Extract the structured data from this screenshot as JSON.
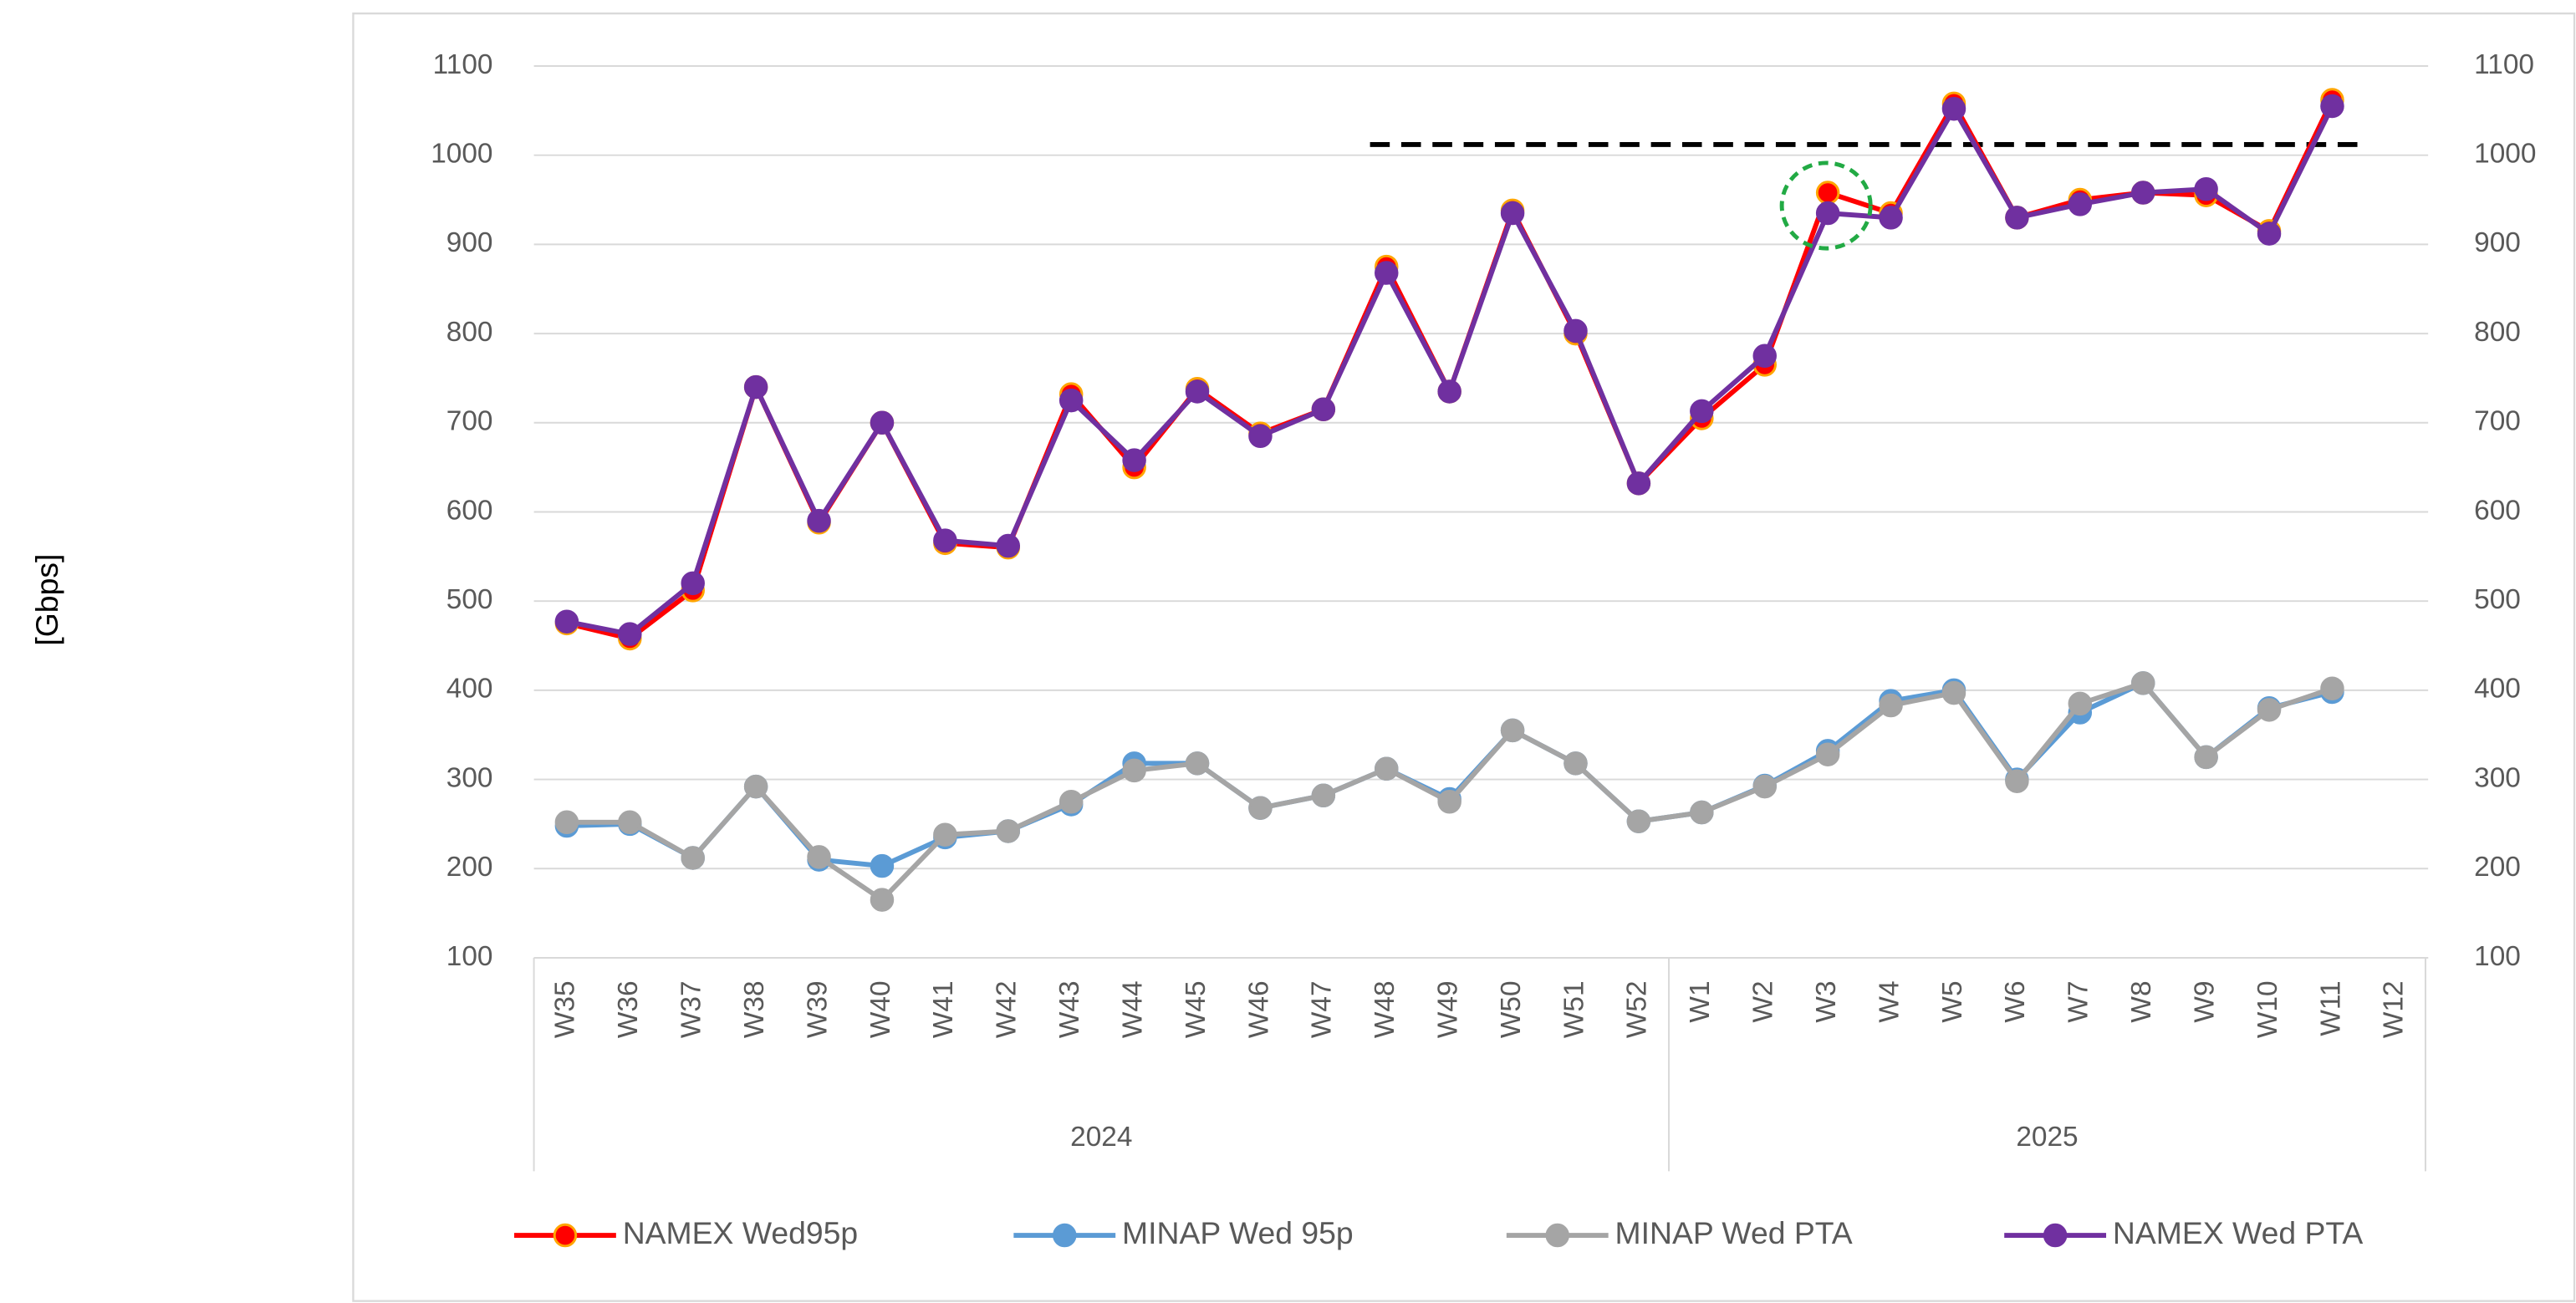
{
  "chart_data": {
    "type": "line",
    "y_axis_label": "[Gbps]",
    "categories": [
      "W35",
      "W36",
      "W37",
      "W38",
      "W39",
      "W40",
      "W41",
      "W42",
      "W43",
      "W44",
      "W45",
      "W46",
      "W47",
      "W48",
      "W49",
      "W50",
      "W51",
      "W52",
      "W1",
      "W2",
      "W3",
      "W4",
      "W5",
      "W6",
      "W7",
      "W8",
      "W9",
      "W10",
      "W11",
      "W12"
    ],
    "groups": [
      {
        "label": "2024",
        "count": 18
      },
      {
        "label": "2025",
        "count": 12
      }
    ],
    "series": [
      {
        "name": "NAMEX Wed95p",
        "color": "#ff0000",
        "marker_edge": "#ffa500",
        "values": [
          475,
          458,
          512,
          740,
          588,
          700,
          565,
          560,
          732,
          650,
          738,
          688,
          715,
          875,
          735,
          938,
          800,
          632,
          705,
          765,
          958,
          935,
          1058,
          930,
          950,
          958,
          955,
          915,
          1062,
          null
        ]
      },
      {
        "name": "MINAP Wed 95p",
        "color": "#5b9bd5",
        "values": [
          248,
          250,
          212,
          292,
          210,
          203,
          235,
          242,
          272,
          318,
          318,
          268,
          282,
          312,
          278,
          355,
          318,
          253,
          263,
          293,
          332,
          388,
          400,
          300,
          375,
          408,
          325,
          380,
          398,
          null
        ]
      },
      {
        "name": "MINAP Wed PTA",
        "color": "#a5a5a5",
        "values": [
          252,
          252,
          212,
          292,
          213,
          165,
          238,
          242,
          275,
          310,
          318,
          268,
          282,
          312,
          275,
          355,
          318,
          253,
          263,
          292,
          328,
          383,
          397,
          298,
          385,
          408,
          325,
          378,
          402,
          null
        ]
      },
      {
        "name": "NAMEX Wed PTA",
        "color": "#7030a0",
        "values": [
          477,
          463,
          520,
          740,
          590,
          700,
          568,
          562,
          725,
          658,
          735,
          685,
          715,
          868,
          735,
          935,
          803,
          632,
          713,
          775,
          935,
          930,
          1052,
          930,
          945,
          958,
          962,
          912,
          1055,
          null
        ]
      }
    ],
    "ylim": [
      100,
      1100
    ],
    "yticks": [
      100,
      200,
      300,
      400,
      500,
      600,
      700,
      800,
      900,
      1000,
      1100
    ],
    "y2lim": [
      100,
      1100
    ],
    "y2ticks": [
      100,
      200,
      300,
      400,
      500,
      600,
      700,
      800,
      900,
      1000,
      1100
    ],
    "grid": true,
    "legend": "bottom",
    "reference_line": {
      "value": 1012,
      "start": "W48",
      "color": "#000000"
    }
  }
}
